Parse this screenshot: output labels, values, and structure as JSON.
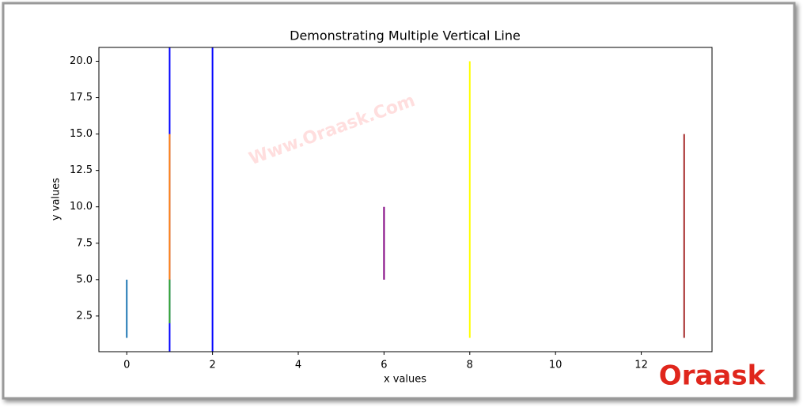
{
  "chart_data": {
    "type": "vlines",
    "title": "Demonstrating Multiple Vertical Line",
    "x_label": "x values",
    "y_label": "y values",
    "xlim": [
      -0.65,
      13.65
    ],
    "ylim": [
      0.05,
      20.95
    ],
    "xticks": [
      0,
      2,
      4,
      6,
      8,
      10,
      12
    ],
    "yticks": [
      2.5,
      {
        "value": 5,
        "label": "5.0"
      },
      7.5,
      {
        "value": 10,
        "label": "10.0"
      },
      12.5,
      {
        "value": 15,
        "label": "15.0"
      },
      17.5,
      {
        "value": 20,
        "label": "20.0"
      }
    ],
    "grid": false,
    "axvlines": [
      {
        "x": 1,
        "color": "#0000ff"
      },
      {
        "x": 2,
        "color": "#0000ff"
      }
    ],
    "lines": [
      {
        "x": 0,
        "ymin": 1,
        "ymax": 5,
        "color": "#1f77b4"
      },
      {
        "x": 1,
        "ymin": 5,
        "ymax": 15,
        "color": "#ff7f0e"
      },
      {
        "x": 1,
        "ymin": 2,
        "ymax": 5,
        "color": "#2ca02c"
      },
      {
        "x": 6,
        "ymin": 5,
        "ymax": 10,
        "color": "#800080"
      },
      {
        "x": 8,
        "ymin": 1,
        "ymax": 20,
        "color": "#ffff00"
      },
      {
        "x": 13,
        "ymin": 1,
        "ymax": 15,
        "color": "#a52a2a"
      }
    ]
  },
  "watermark": "Www.Oraask.Com",
  "logo": "Oraask"
}
